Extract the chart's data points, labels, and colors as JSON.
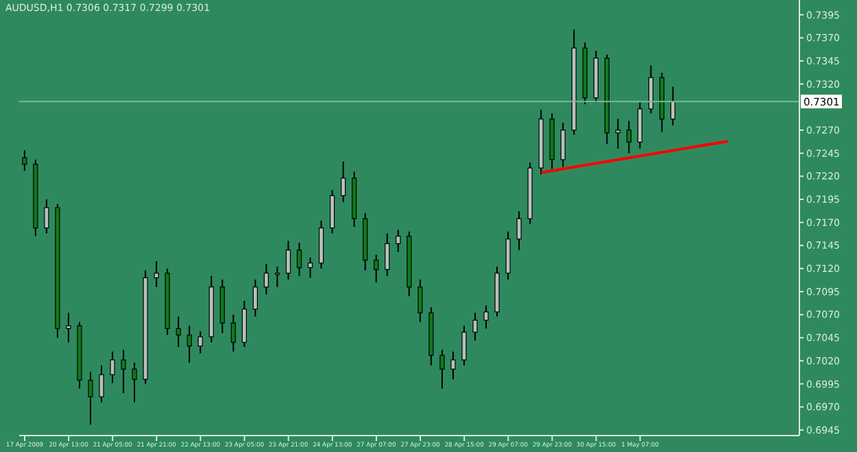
{
  "chart_data": {
    "type": "candlestick",
    "title": "AUDUSD,H1  0.7306 0.7317 0.7299 0.7301",
    "categories": [
      "17 Apr 2009",
      null,
      null,
      null,
      "20 Apr 13:00",
      null,
      null,
      null,
      "21 Apr 05:00",
      null,
      null,
      null,
      "21 Apr 21:00",
      null,
      null,
      null,
      "22 Apr 13:00",
      null,
      null,
      null,
      "23 Apr 05:00",
      null,
      null,
      null,
      "23 Apr 21:00",
      null,
      null,
      null,
      "24 Apr 13:00",
      null,
      null,
      null,
      "27 Apr 07:00",
      null,
      null,
      null,
      "27 Apr 23:00",
      null,
      null,
      null,
      "28 Apr 15:00",
      null,
      null,
      null,
      "29 Apr 07:00",
      null,
      null,
      null,
      "29 Apr 23:00",
      null,
      null,
      null,
      "30 Apr 15:00",
      null,
      null,
      null,
      "1 May 07:00",
      null,
      null,
      null,
      null,
      null,
      null,
      null,
      null,
      null,
      null,
      null,
      null,
      null,
      null
    ],
    "series": [
      {
        "color": "#000000",
        "ohlc": [
          [
            0.724,
            0.7248,
            0.7226,
            0.7233
          ],
          [
            0.7233,
            0.7238,
            0.7155,
            0.7164
          ],
          [
            0.7164,
            0.7195,
            0.7158,
            0.7186
          ],
          [
            0.7186,
            0.719,
            0.7045,
            0.7055
          ],
          [
            0.7055,
            0.7072,
            0.704,
            0.7058
          ],
          [
            0.7058,
            0.7062,
            0.699,
            0.6999
          ],
          [
            0.6999,
            0.7008,
            0.6951,
            0.6981
          ],
          [
            0.6981,
            0.7015,
            0.6975,
            0.7005
          ],
          [
            0.7005,
            0.703,
            0.6996,
            0.7021
          ],
          [
            0.7021,
            0.7032,
            0.6985,
            0.7011
          ],
          [
            0.7011,
            0.7018,
            0.6975,
            0.7
          ],
          [
            0.7,
            0.7118,
            0.6995,
            0.711
          ],
          [
            0.711,
            0.7128,
            0.71,
            0.7115
          ],
          [
            0.7115,
            0.712,
            0.7048,
            0.7055
          ],
          [
            0.7055,
            0.7068,
            0.7035,
            0.7048
          ],
          [
            0.7048,
            0.7058,
            0.7018,
            0.7036
          ],
          [
            0.7036,
            0.7052,
            0.7028,
            0.7046
          ],
          [
            0.7046,
            0.7112,
            0.704,
            0.71
          ],
          [
            0.71,
            0.7108,
            0.705,
            0.7061
          ],
          [
            0.7061,
            0.707,
            0.703,
            0.704
          ],
          [
            0.704,
            0.7085,
            0.7035,
            0.7076
          ],
          [
            0.7076,
            0.7108,
            0.7068,
            0.71
          ],
          [
            0.71,
            0.7125,
            0.7092,
            0.7115
          ],
          [
            0.7115,
            0.7122,
            0.71,
            0.7115
          ],
          [
            0.7115,
            0.715,
            0.7108,
            0.714
          ],
          [
            0.714,
            0.7148,
            0.7112,
            0.7121
          ],
          [
            0.7121,
            0.7132,
            0.711,
            0.7126
          ],
          [
            0.7126,
            0.7172,
            0.712,
            0.7164
          ],
          [
            0.7164,
            0.7205,
            0.7158,
            0.7199
          ],
          [
            0.7199,
            0.7236,
            0.7192,
            0.7218
          ],
          [
            0.7218,
            0.7225,
            0.7165,
            0.7174
          ],
          [
            0.7174,
            0.718,
            0.7118,
            0.7129
          ],
          [
            0.7129,
            0.7135,
            0.7105,
            0.7119
          ],
          [
            0.7119,
            0.7158,
            0.7112,
            0.7147
          ],
          [
            0.7147,
            0.7162,
            0.7138,
            0.7155
          ],
          [
            0.7155,
            0.716,
            0.709,
            0.71
          ],
          [
            0.71,
            0.7108,
            0.7062,
            0.7072
          ],
          [
            0.7072,
            0.7078,
            0.7015,
            0.7026
          ],
          [
            0.7026,
            0.7032,
            0.699,
            0.7011
          ],
          [
            0.7011,
            0.703,
            0.7,
            0.7021
          ],
          [
            0.7021,
            0.7058,
            0.7015,
            0.7051
          ],
          [
            0.7051,
            0.7072,
            0.7042,
            0.7064
          ],
          [
            0.7064,
            0.708,
            0.7055,
            0.7073
          ],
          [
            0.7073,
            0.7122,
            0.7068,
            0.7115
          ],
          [
            0.7115,
            0.716,
            0.7108,
            0.7152
          ],
          [
            0.7152,
            0.7182,
            0.714,
            0.7174
          ],
          [
            0.7174,
            0.7235,
            0.7168,
            0.7229
          ],
          [
            0.7229,
            0.7292,
            0.7222,
            0.7282
          ],
          [
            0.7282,
            0.7288,
            0.7228,
            0.7238
          ],
          [
            0.7238,
            0.7278,
            0.723,
            0.727
          ],
          [
            0.727,
            0.7379,
            0.7265,
            0.7359
          ],
          [
            0.7359,
            0.7365,
            0.7298,
            0.7305
          ],
          [
            0.7305,
            0.7356,
            0.73,
            0.7348
          ],
          [
            0.7348,
            0.7352,
            0.7255,
            0.7267
          ],
          [
            0.7267,
            0.7282,
            0.725,
            0.727
          ],
          [
            0.727,
            0.728,
            0.7245,
            0.7257
          ],
          [
            0.7257,
            0.73,
            0.725,
            0.7293
          ],
          [
            0.7293,
            0.734,
            0.7288,
            0.7327
          ],
          [
            0.7327,
            0.7332,
            0.7268,
            0.7282
          ],
          [
            0.7282,
            0.7317,
            0.7275,
            0.7301
          ],
          null,
          null,
          null,
          null,
          null,
          null,
          null,
          null,
          null,
          null,
          null
        ]
      },
      {
        "type": "line",
        "color": "#ff0000",
        "values": [
          null,
          null,
          null,
          null,
          null,
          null,
          null,
          null,
          null,
          null,
          null,
          null,
          null,
          null,
          null,
          null,
          null,
          null,
          null,
          null,
          null,
          null,
          null,
          null,
          null,
          null,
          null,
          null,
          null,
          null,
          null,
          null,
          null,
          null,
          null,
          null,
          null,
          null,
          null,
          null,
          null,
          null,
          null,
          null,
          null,
          null,
          null,
          0.7224,
          null,
          null,
          null,
          null,
          null,
          null,
          null,
          null,
          null,
          null,
          null,
          null,
          null,
          null,
          null,
          null,
          0.7258,
          null,
          null,
          null,
          null,
          null,
          null
        ]
      }
    ],
    "ylim": [
      0.6939,
      0.7411
    ],
    "yticks": [
      {
        "value": 0.6945,
        "label": "0.6945"
      },
      {
        "value": 0.697,
        "label": "0.6970"
      },
      {
        "value": 0.6995,
        "label": "0.6995"
      },
      {
        "value": 0.702,
        "label": "0.7020"
      },
      {
        "value": 0.7045,
        "label": "0.7045"
      },
      {
        "value": 0.707,
        "label": "0.7070"
      },
      {
        "value": 0.7095,
        "label": "0.7095"
      },
      {
        "value": 0.712,
        "label": "0.7120"
      },
      {
        "value": 0.7145,
        "label": "0.7145"
      },
      {
        "value": 0.717,
        "label": "0.7170"
      },
      {
        "value": 0.7195,
        "label": "0.7195"
      },
      {
        "value": 0.722,
        "label": "0.7220"
      },
      {
        "value": 0.7245,
        "label": "0.7245"
      },
      {
        "value": 0.727,
        "label": "0.7270"
      },
      {
        "value": 0.732,
        "label": "0.7320"
      },
      {
        "value": 0.7345,
        "label": "0.7345"
      },
      {
        "value": 0.737,
        "label": "0.7370"
      },
      {
        "value": 0.7395,
        "label": "0.7395"
      }
    ],
    "ref_lines": [
      {
        "axis": "y",
        "value": 0.7301,
        "label": "0.7301",
        "color": "#7fb89a"
      }
    ]
  }
}
